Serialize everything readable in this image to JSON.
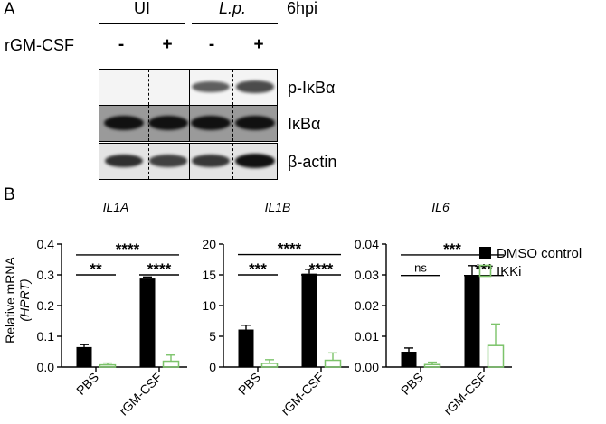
{
  "panel_a": {
    "letter": "A",
    "groups": [
      "UI",
      "L.p."
    ],
    "timepoint": "6hpi",
    "treatment_label": "rGM-CSF",
    "lane_signs": [
      "-",
      "+",
      "-",
      "+"
    ],
    "blots": [
      {
        "label": "p-IκBα",
        "band_intensity": [
          0.0,
          0.0,
          0.55,
          0.65
        ]
      },
      {
        "label": "IκBα",
        "band_intensity": [
          1.0,
          1.0,
          1.0,
          1.0
        ]
      },
      {
        "label": "β-actin",
        "band_intensity": [
          0.8,
          0.7,
          0.75,
          1.0
        ]
      }
    ],
    "colors": {
      "band": "#111111"
    }
  },
  "panel_b": {
    "letter": "B",
    "ylabel_line1": "Relative mRNA",
    "ylabel_line2": "(HPRT)",
    "legend": [
      {
        "name": "DMSO control",
        "style": "filled",
        "color": "#000000"
      },
      {
        "name": "IKKi",
        "style": "open",
        "color": "#7cc36a"
      }
    ]
  },
  "chart_data": [
    {
      "type": "bar",
      "title": "IL1A",
      "categories": [
        "PBS",
        "rGM-CSF"
      ],
      "series": [
        {
          "name": "DMSO control",
          "values": [
            0.065,
            0.288
          ],
          "errors": [
            0.008,
            0.005
          ]
        },
        {
          "name": "IKKi",
          "values": [
            0.007,
            0.019
          ],
          "errors": [
            0.006,
            0.02
          ]
        }
      ],
      "ylim": [
        0,
        0.4
      ],
      "yticks": [
        0.0,
        0.1,
        0.2,
        0.3,
        0.4
      ],
      "ytick_labels": [
        "0.0",
        "0.1",
        "0.2",
        "0.3",
        "0.4"
      ],
      "significance": [
        {
          "from": 0,
          "to": 3,
          "label": "****",
          "y": 0.365
        },
        {
          "from": 0,
          "to": 1,
          "label": "**",
          "y": 0.3
        },
        {
          "from": 2,
          "to": 3,
          "label": "****",
          "y": 0.3
        }
      ]
    },
    {
      "type": "bar",
      "title": "IL1B",
      "categories": [
        "PBS",
        "rGM-CSF"
      ],
      "series": [
        {
          "name": "DMSO control",
          "values": [
            6.1,
            15.2
          ],
          "errors": [
            0.7,
            0.7
          ]
        },
        {
          "name": "IKKi",
          "values": [
            0.6,
            1.1
          ],
          "errors": [
            0.6,
            1.2
          ]
        }
      ],
      "ylim": [
        0,
        20
      ],
      "yticks": [
        0,
        5,
        10,
        15,
        20
      ],
      "ytick_labels": [
        "0",
        "5",
        "10",
        "15",
        "20"
      ],
      "significance": [
        {
          "from": 0,
          "to": 3,
          "label": "****",
          "y": 18.3
        },
        {
          "from": 0,
          "to": 1,
          "label": "***",
          "y": 15.0
        },
        {
          "from": 2,
          "to": 3,
          "label": "****",
          "y": 15.0
        }
      ]
    },
    {
      "type": "bar",
      "title": "IL6",
      "categories": [
        "PBS",
        "rGM-CSF"
      ],
      "series": [
        {
          "name": "DMSO control",
          "values": [
            0.005,
            0.03
          ],
          "errors": [
            0.0012,
            0.003
          ]
        },
        {
          "name": "IKKi",
          "values": [
            0.0008,
            0.007
          ],
          "errors": [
            0.0008,
            0.007
          ]
        }
      ],
      "ylim": [
        0,
        0.04
      ],
      "yticks": [
        0.0,
        0.01,
        0.02,
        0.03,
        0.04
      ],
      "ytick_labels": [
        "0.00",
        "0.01",
        "0.02",
        "0.03",
        "0.04"
      ],
      "significance": [
        {
          "from": 0,
          "to": 3,
          "label": "***",
          "y": 0.0365
        },
        {
          "from": 0,
          "to": 1,
          "label": "ns",
          "y": 0.0298
        },
        {
          "from": 2,
          "to": 3,
          "label": "***",
          "y": 0.0298
        }
      ]
    }
  ]
}
